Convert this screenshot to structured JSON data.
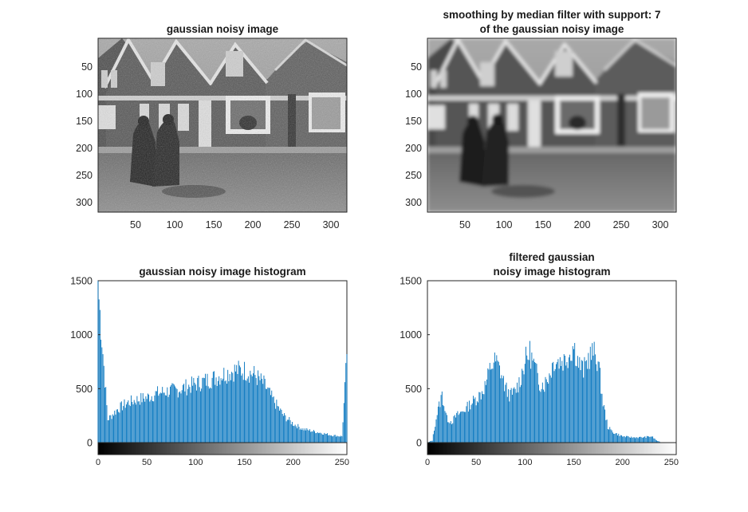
{
  "figure": {
    "panels": {
      "noisy_image": {
        "title_lines": [
          "gaussian noisy image"
        ],
        "xticks": [
          "50",
          "100",
          "150",
          "200",
          "250",
          "300"
        ],
        "yticks": [
          "50",
          "100",
          "150",
          "200",
          "250",
          "300"
        ]
      },
      "filtered_image": {
        "title_lines": [
          "smoothing by median filter with support: 7",
          "of the gaussian noisy image"
        ],
        "xticks": [
          "50",
          "100",
          "150",
          "200",
          "250",
          "300"
        ],
        "yticks": [
          "50",
          "100",
          "150",
          "200",
          "250",
          "300"
        ]
      },
      "noisy_hist": {
        "title_lines": [
          "gaussian noisy image histogram"
        ]
      },
      "filtered_hist": {
        "title_lines": [
          "filtered gaussian",
          "noisy image histogram"
        ]
      }
    }
  },
  "chart_data": [
    {
      "type": "heatmap",
      "title": "gaussian noisy image",
      "xlim": [
        0.5,
        320.5
      ],
      "ylim": [
        0.5,
        320.5
      ],
      "y_reversed": true,
      "colormap": "gray",
      "xticks": [
        50,
        100,
        150,
        200,
        250,
        300
      ],
      "yticks": [
        50,
        100,
        150,
        200,
        250,
        300
      ]
    },
    {
      "type": "heatmap",
      "title": "smoothing by median filter with support: 7 of the gaussian noisy image",
      "xlim": [
        0.5,
        320.5
      ],
      "ylim": [
        0.5,
        320.5
      ],
      "y_reversed": true,
      "colormap": "gray",
      "xticks": [
        50,
        100,
        150,
        200,
        250,
        300
      ],
      "yticks": [
        50,
        100,
        150,
        200,
        250,
        300
      ]
    },
    {
      "type": "bar",
      "title": "gaussian noisy image histogram",
      "xlim": [
        0,
        255
      ],
      "ylim": [
        0,
        1500
      ],
      "xticks": [
        0,
        50,
        100,
        150,
        200,
        250
      ],
      "yticks": [
        0,
        500,
        1000,
        1500
      ],
      "bar_color": "#0072BD",
      "colorbar": "gray",
      "bins_x": [
        0,
        10,
        20,
        30,
        40,
        50,
        60,
        70,
        80,
        90,
        100,
        110,
        120,
        130,
        140,
        150,
        160,
        170,
        180,
        190,
        200,
        210,
        220,
        230,
        240,
        250,
        255
      ],
      "bins_y": [
        1500,
        220,
        320,
        380,
        410,
        430,
        470,
        490,
        500,
        530,
        560,
        590,
        620,
        660,
        690,
        690,
        650,
        560,
        400,
        260,
        180,
        130,
        110,
        90,
        70,
        60,
        820
      ]
    },
    {
      "type": "bar",
      "title": "filtered gaussian noisy image histogram",
      "xlim": [
        0,
        255
      ],
      "ylim": [
        0,
        1500
      ],
      "xticks": [
        0,
        50,
        100,
        150,
        200,
        250
      ],
      "yticks": [
        0,
        500,
        1000,
        1500
      ],
      "bar_color": "#0072BD",
      "colorbar": "gray",
      "bins_x": [
        0,
        5,
        10,
        15,
        20,
        25,
        30,
        35,
        40,
        45,
        50,
        55,
        60,
        65,
        70,
        75,
        80,
        85,
        90,
        95,
        100,
        105,
        110,
        115,
        120,
        125,
        130,
        135,
        140,
        145,
        150,
        155,
        160,
        165,
        170,
        175,
        180,
        185,
        190,
        200,
        210,
        220,
        230,
        235,
        240,
        255
      ],
      "bins_y": [
        0,
        20,
        280,
        460,
        230,
        200,
        260,
        290,
        330,
        380,
        420,
        470,
        560,
        730,
        780,
        680,
        520,
        450,
        490,
        600,
        780,
        860,
        720,
        570,
        560,
        650,
        790,
        780,
        790,
        840,
        930,
        760,
        690,
        810,
        860,
        780,
        380,
        150,
        100,
        60,
        50,
        50,
        60,
        20,
        0,
        0
      ]
    }
  ]
}
